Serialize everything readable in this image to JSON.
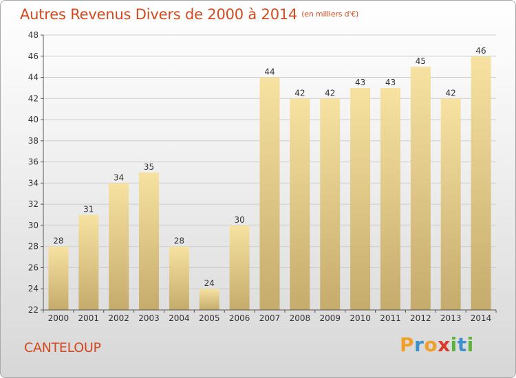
{
  "header": {
    "title": "Autres Revenus Divers de 2000 à 2014",
    "unit": "(en milliers d'€)"
  },
  "footer": {
    "commune": "CANTELOUP",
    "logo_letters": [
      {
        "char": "P",
        "color": "#f0a02a"
      },
      {
        "char": "r",
        "color": "#3d8fd0"
      },
      {
        "char": "o",
        "color": "#f0a02a"
      },
      {
        "char": "x",
        "color": "#d93a2a"
      },
      {
        "char": "i",
        "color": "#5bb33c"
      },
      {
        "char": "t",
        "color": "#3d8fd0"
      },
      {
        "char": "i",
        "color": "#5bb33c"
      }
    ]
  },
  "colors": {
    "title": "#d44a1e",
    "bar_light": "#f7e2a2",
    "bar_dark": "#c5ab6c",
    "axis": "#555555",
    "grid": "#cccccc"
  },
  "chart_data": {
    "type": "bar",
    "title": "Autres Revenus Divers de 2000 à 2014",
    "xlabel": "",
    "ylabel": "",
    "categories": [
      "2000",
      "2001",
      "2002",
      "2003",
      "2004",
      "2005",
      "2006",
      "2007",
      "2008",
      "2009",
      "2010",
      "2011",
      "2012",
      "2013",
      "2014"
    ],
    "values": [
      28,
      31,
      34,
      35,
      28,
      24,
      30,
      44,
      42,
      42,
      43,
      43,
      45,
      42,
      46
    ],
    "ylim": [
      22,
      48
    ],
    "yticks": [
      22,
      24,
      26,
      28,
      30,
      32,
      34,
      36,
      38,
      40,
      42,
      44,
      46,
      48
    ],
    "grid": true,
    "data_labels": true
  }
}
